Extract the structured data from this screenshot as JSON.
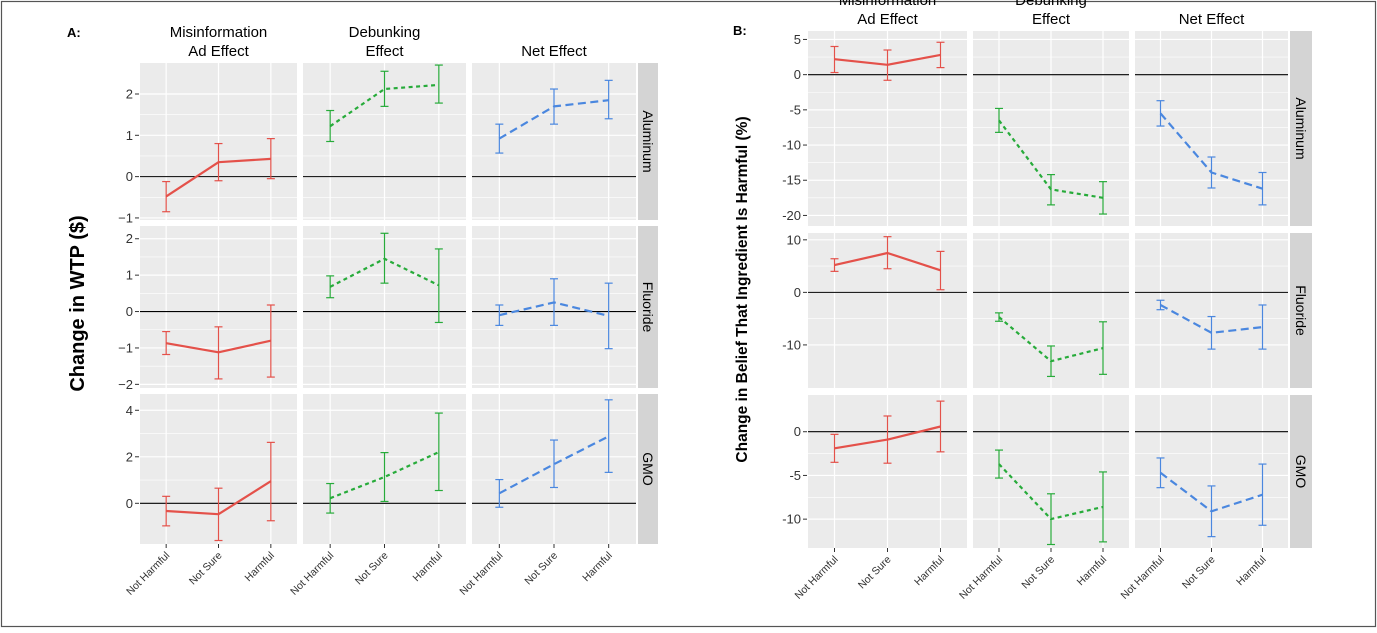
{
  "chart_data": [
    {
      "type": "line",
      "panel_label": "A:",
      "ylabel": "Change in WTP ($)",
      "column_titles": [
        [
          "Misinformation",
          "Ad Effect"
        ],
        [
          "Debunking",
          "Effect"
        ],
        [
          "Net Effect"
        ]
      ],
      "categories": [
        "Not Harmful",
        "Not Sure",
        "Harmful"
      ],
      "rows": [
        {
          "label": "Aluminum",
          "ylim": [
            -1.05,
            2.75
          ],
          "ticks": [
            {
              "v": -1,
              "t": "−1"
            },
            {
              "v": 0,
              "t": "0"
            },
            {
              "v": 1,
              "t": "1"
            },
            {
              "v": 2,
              "t": "2"
            }
          ],
          "series": [
            {
              "values": [
                -0.48,
                0.35,
                0.43
              ],
              "lower": [
                -0.85,
                -0.1,
                -0.05
              ],
              "upper": [
                -0.12,
                0.8,
                0.92
              ]
            },
            {
              "values": [
                1.22,
                2.12,
                2.22
              ],
              "lower": [
                0.85,
                1.7,
                1.78
              ],
              "upper": [
                1.6,
                2.55,
                2.7
              ]
            },
            {
              "values": [
                0.92,
                1.7,
                1.85
              ],
              "lower": [
                0.57,
                1.27,
                1.4
              ],
              "upper": [
                1.27,
                2.12,
                2.33
              ]
            }
          ]
        },
        {
          "label": "Fluoride",
          "ylim": [
            -2.1,
            2.35
          ],
          "ticks": [
            {
              "v": -2,
              "t": "−2"
            },
            {
              "v": -1,
              "t": "−1"
            },
            {
              "v": 0,
              "t": "0"
            },
            {
              "v": 1,
              "t": "1"
            },
            {
              "v": 2,
              "t": "2"
            }
          ],
          "series": [
            {
              "values": [
                -0.87,
                -1.12,
                -0.8
              ],
              "lower": [
                -1.18,
                -1.85,
                -1.8
              ],
              "upper": [
                -0.55,
                -0.42,
                0.18
              ]
            },
            {
              "values": [
                0.68,
                1.45,
                0.72
              ],
              "lower": [
                0.38,
                0.78,
                -0.3
              ],
              "upper": [
                0.98,
                2.15,
                1.72
              ]
            },
            {
              "values": [
                -0.1,
                0.25,
                -0.12
              ],
              "lower": [
                -0.38,
                -0.38,
                -1.02
              ],
              "upper": [
                0.18,
                0.9,
                0.78
              ]
            }
          ]
        },
        {
          "label": "GMO",
          "ylim": [
            -1.75,
            4.7
          ],
          "ticks": [
            {
              "v": 0,
              "t": "0"
            },
            {
              "v": 2,
              "t": "2"
            },
            {
              "v": 4,
              "t": "4"
            }
          ],
          "series": [
            {
              "values": [
                -0.33,
                -0.47,
                0.95
              ],
              "lower": [
                -0.97,
                -1.6,
                -0.75
              ],
              "upper": [
                0.3,
                0.65,
                2.62
              ]
            },
            {
              "values": [
                0.22,
                1.13,
                2.2
              ],
              "lower": [
                -0.42,
                0.08,
                0.55
              ],
              "upper": [
                0.85,
                2.18,
                3.88
              ]
            },
            {
              "values": [
                0.43,
                1.68,
                2.88
              ],
              "lower": [
                -0.17,
                0.68,
                1.33
              ],
              "upper": [
                1.02,
                2.72,
                4.45
              ]
            }
          ]
        }
      ]
    },
    {
      "type": "line",
      "panel_label": "B:",
      "ylabel": "Change in Belief That Ingredient Is Harmful (%)",
      "column_titles": [
        [
          "Misinformation",
          "Ad Effect"
        ],
        [
          "Debunking",
          "Effect"
        ],
        [
          "Net Effect"
        ]
      ],
      "categories": [
        "Not Harmful",
        "Not Sure",
        "Harmful"
      ],
      "rows": [
        {
          "label": "Aluminum",
          "ylim": [
            -21.5,
            6.2
          ],
          "ticks": [
            {
              "v": -20,
              "t": "-20"
            },
            {
              "v": -15,
              "t": "-15"
            },
            {
              "v": -10,
              "t": "-10"
            },
            {
              "v": -5,
              "t": "-5"
            },
            {
              "v": 0,
              "t": "0"
            },
            {
              "v": 5,
              "t": "5"
            }
          ],
          "series": [
            {
              "values": [
                2.2,
                1.4,
                2.8
              ],
              "lower": [
                0.3,
                -0.8,
                1.0
              ],
              "upper": [
                4.0,
                3.5,
                4.6
              ]
            },
            {
              "values": [
                -6.5,
                -16.3,
                -17.5
              ],
              "lower": [
                -8.2,
                -18.5,
                -19.8
              ],
              "upper": [
                -4.8,
                -14.2,
                -15.2
              ]
            },
            {
              "values": [
                -5.5,
                -13.9,
                -16.2
              ],
              "lower": [
                -7.3,
                -16.1,
                -18.5
              ],
              "upper": [
                -3.7,
                -11.7,
                -13.9
              ]
            }
          ]
        },
        {
          "label": "Fluoride",
          "ylim": [
            -18.2,
            11.3
          ],
          "ticks": [
            {
              "v": -10,
              "t": "-10"
            },
            {
              "v": 0,
              "t": "0"
            },
            {
              "v": 10,
              "t": "10"
            }
          ],
          "series": [
            {
              "values": [
                5.2,
                7.5,
                4.2
              ],
              "lower": [
                4.0,
                4.5,
                0.5
              ],
              "upper": [
                6.4,
                10.6,
                7.8
              ]
            },
            {
              "values": [
                -4.7,
                -13.1,
                -10.6
              ],
              "lower": [
                -5.5,
                -16.0,
                -15.6
              ],
              "upper": [
                -3.9,
                -10.2,
                -5.6
              ]
            },
            {
              "values": [
                -2.4,
                -7.7,
                -6.6
              ],
              "lower": [
                -3.3,
                -10.8,
                -10.8
              ],
              "upper": [
                -1.5,
                -4.6,
                -2.4
              ]
            }
          ]
        },
        {
          "label": "GMO",
          "ylim": [
            -13.3,
            4.2
          ],
          "ticks": [
            {
              "v": -10,
              "t": "-10"
            },
            {
              "v": -5,
              "t": "-5"
            },
            {
              "v": 0,
              "t": "0"
            }
          ],
          "series": [
            {
              "values": [
                -1.9,
                -0.9,
                0.6
              ],
              "lower": [
                -3.5,
                -3.6,
                -2.3
              ],
              "upper": [
                -0.3,
                1.8,
                3.5
              ]
            },
            {
              "values": [
                -3.7,
                -10.0,
                -8.6
              ],
              "lower": [
                -5.3,
                -12.9,
                -12.6
              ],
              "upper": [
                -2.1,
                -7.1,
                -4.6
              ]
            },
            {
              "values": [
                -4.7,
                -9.1,
                -7.2
              ],
              "lower": [
                -6.4,
                -12.0,
                -10.7
              ],
              "upper": [
                -3.0,
                -6.2,
                -3.7
              ]
            }
          ]
        }
      ]
    }
  ],
  "colors": {
    "series": [
      "#e4514a",
      "#27ab3a",
      "#4a87df"
    ],
    "panel_bg": "#ebebeb",
    "grid": "#ffffff",
    "strip_bg": "#d4d4d4",
    "frame": "#555555",
    "text": "#000000",
    "tick_text": "#4d4d4d"
  },
  "series_dash": [
    "",
    "4,3.5",
    "8,4.5"
  ]
}
